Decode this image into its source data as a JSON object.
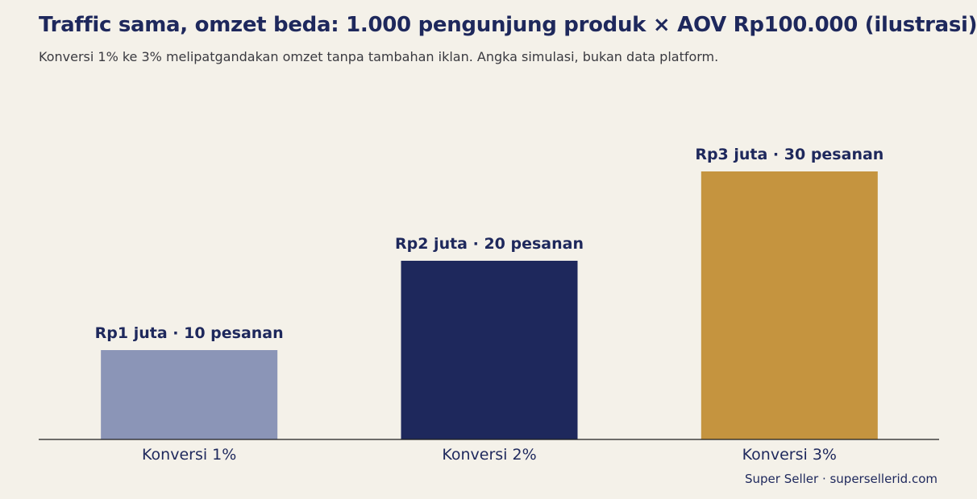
{
  "header": {
    "title": "Traffic sama, omzet beda: 1.000 pengunjung produk × AOV Rp100.000 (ilustrasi)",
    "subtitle": "Konversi 1% ke 3% melipatgandakan omzet tanpa tambahan iklan. Angka simulasi, bukan data platform."
  },
  "footer": {
    "credit": "Super Seller · supersellerid.com"
  },
  "chart_data": {
    "type": "bar",
    "title": "Traffic sama, omzet beda: 1.000 pengunjung produk × AOV Rp100.000 (ilustrasi)",
    "subtitle": "Konversi 1% ke 3% melipatgandakan omzet tanpa tambahan iklan. Angka simulasi, bukan data platform.",
    "categories": [
      "Konversi 1%",
      "Konversi 2%",
      "Konversi 3%"
    ],
    "values": [
      1,
      2,
      3
    ],
    "orders": [
      10,
      20,
      30
    ],
    "data_labels": [
      "Rp1 juta · 10 pesanan",
      "Rp2 juta · 20 pesanan",
      "Rp3 juta · 30 pesanan"
    ],
    "colors": [
      "#8b95b7",
      "#1e285c",
      "#c5943f"
    ],
    "xlabel": "",
    "ylabel": "",
    "ylim": [
      0,
      3
    ],
    "grid": false,
    "legend": "none"
  }
}
